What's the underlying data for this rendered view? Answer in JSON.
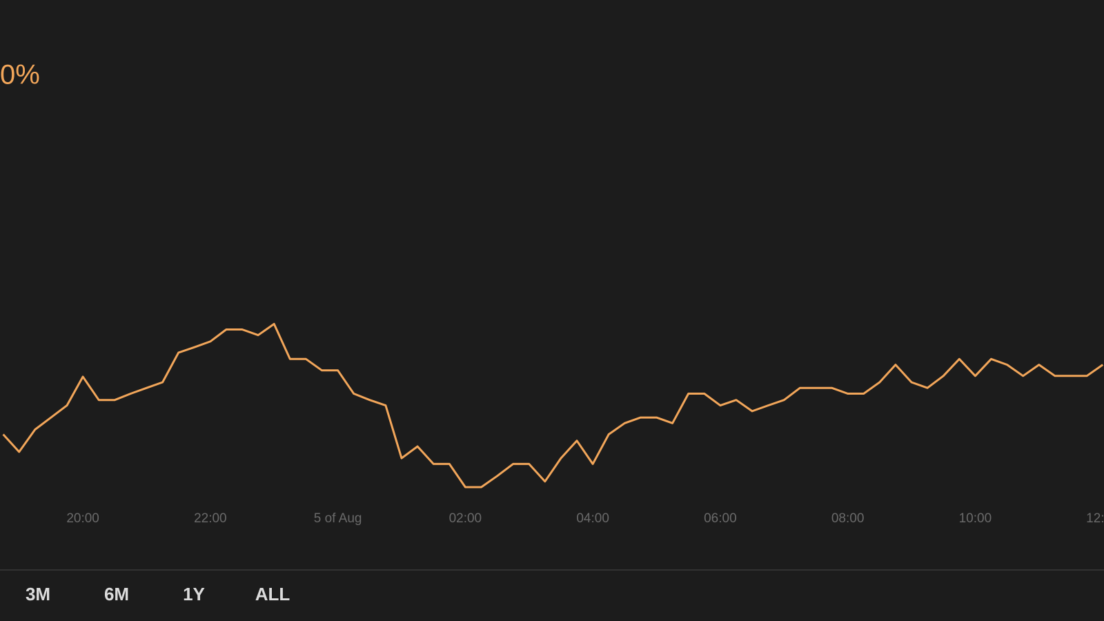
{
  "header": {
    "change": "0%"
  },
  "chart_data": {
    "type": "line",
    "color": "#f2a65a",
    "x": [
      18.75,
      19,
      19.25,
      19.5,
      19.75,
      20,
      20.25,
      20.5,
      20.75,
      21,
      21.25,
      21.5,
      21.75,
      22,
      22.25,
      22.5,
      22.75,
      23,
      23.25,
      23.5,
      23.75,
      24,
      24.25,
      24.5,
      24.75,
      25,
      25.25,
      25.5,
      25.75,
      26,
      26.25,
      26.5,
      26.75,
      27,
      27.25,
      27.5,
      27.75,
      28,
      28.25,
      28.5,
      28.75,
      29,
      29.25,
      29.5,
      29.75,
      30,
      30.25,
      30.5,
      30.75,
      31,
      31.25,
      31.5,
      31.75,
      32,
      32.25,
      32.5,
      32.75,
      33,
      33.25,
      33.5,
      33.75,
      34,
      34.25,
      34.5,
      34.75,
      35,
      35.25,
      35.5,
      35.75,
      36
    ],
    "values": [
      41,
      32.7,
      43.3,
      49,
      54.7,
      68.3,
      57.3,
      57.3,
      60.3,
      63,
      65.7,
      79.7,
      82.3,
      85,
      90.7,
      90.7,
      88,
      93.3,
      76.7,
      76.7,
      71.3,
      71.3,
      60.3,
      57.3,
      54.7,
      29.7,
      35.3,
      27,
      27,
      16,
      16,
      21.3,
      27,
      27,
      18.7,
      29.7,
      38,
      27,
      41,
      46.3,
      49,
      49,
      46.3,
      60.3,
      60.3,
      54.7,
      57.3,
      52,
      54.7,
      57.3,
      63,
      63,
      63,
      60.3,
      60.3,
      65.7,
      74,
      65.7,
      63,
      68.7,
      76.7,
      68.7,
      76.7,
      74,
      68.7,
      74,
      68.7,
      68.7,
      68.7,
      74
    ],
    "xlim": [
      18.7,
      36.02
    ],
    "ylim": [
      0,
      100
    ],
    "xticks": [
      {
        "value": 20,
        "label": "20:00"
      },
      {
        "value": 22,
        "label": "22:00"
      },
      {
        "value": 24,
        "label": "5 of Aug"
      },
      {
        "value": 26,
        "label": "02:00"
      },
      {
        "value": 28,
        "label": "04:00"
      },
      {
        "value": 30,
        "label": "06:00"
      },
      {
        "value": 32,
        "label": "08:00"
      },
      {
        "value": 34,
        "label": "10:00"
      },
      {
        "value": 36,
        "label": "12:"
      }
    ]
  },
  "range_buttons": [
    "3M",
    "6M",
    "1Y",
    "ALL"
  ]
}
